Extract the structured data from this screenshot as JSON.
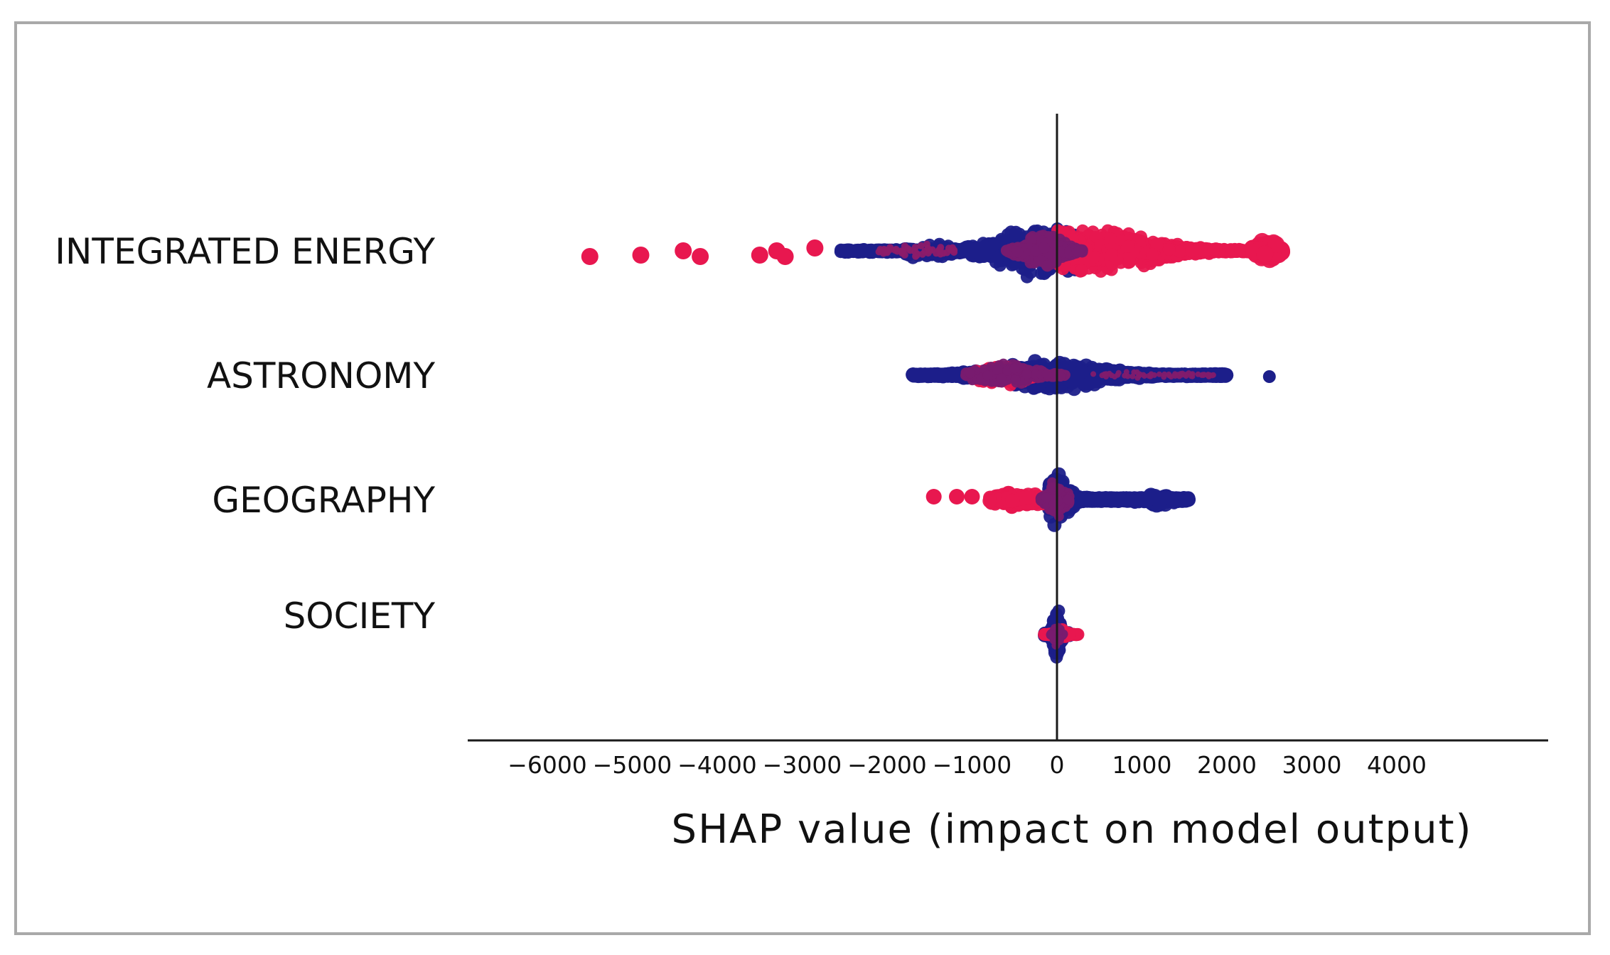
{
  "chart_data": {
    "type": "scatter",
    "subtype": "shap-beeswarm",
    "title": "",
    "xlabel": "SHAP value (impact on model output)",
    "ylabel": "",
    "xlim": [
      -7000,
      5800
    ],
    "xticks": [
      -6000,
      -5000,
      -4000,
      -3000,
      -2000,
      -1000,
      0,
      1000,
      2000,
      3000,
      4000
    ],
    "xtick_labels": [
      "−6000",
      "−5000",
      "−4000",
      "−3000",
      "−2000",
      "−1000",
      "0",
      "1000",
      "2000",
      "3000",
      "4000"
    ],
    "grid": false,
    "legend": "none",
    "colors": {
      "high": "#e8174f",
      "low": "#1c1f8a",
      "mid": "#8a3aa0",
      "axis": "#1a1a1a"
    },
    "categories": [
      "INTEGRATED ENERGY",
      "ASTRONOMY",
      "GEOGRAPHY",
      "SOCIETY"
    ],
    "series": [
      {
        "feature": "INTEGRATED ENERGY",
        "red_outliers": [
          -5500,
          -4900,
          -4400,
          -4200,
          -3500,
          -3300,
          -3200,
          -2850
        ],
        "blue_range": [
          -2550,
          300
        ],
        "purple_core": [
          -600,
          300
        ],
        "red_range": [
          0,
          2650
        ],
        "max_spread": 650
      },
      {
        "feature": "ASTRONOMY",
        "blue_range": [
          -1700,
          2000
        ],
        "red_cluster": [
          -1000,
          -200
        ],
        "purple_core": [
          -1100,
          100
        ],
        "blue_outliers": [
          2500
        ],
        "max_spread": 420
      },
      {
        "feature": "GEOGRAPHY",
        "red_outliers": [
          -1450,
          -1180,
          -1000
        ],
        "red_range": [
          -800,
          -100
        ],
        "blue_range": [
          -100,
          1550
        ],
        "blue_cluster": [
          1100,
          1300
        ],
        "purple_core": [
          -200,
          150
        ],
        "max_spread": 470
      },
      {
        "feature": "SOCIETY",
        "blue_range": [
          -150,
          150
        ],
        "red_range": [
          -150,
          250
        ],
        "purple_core": [
          -80,
          80
        ],
        "max_spread": 160
      }
    ]
  }
}
